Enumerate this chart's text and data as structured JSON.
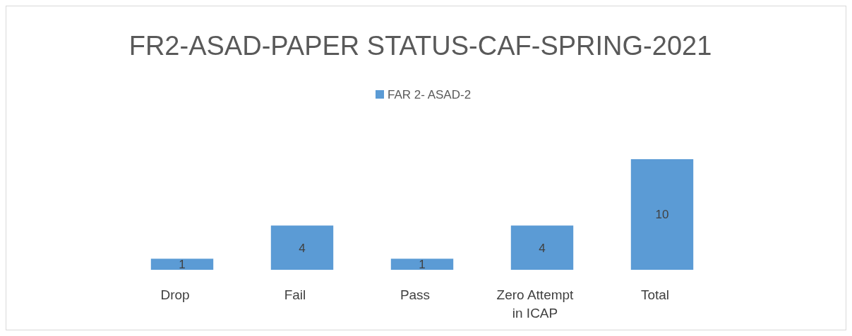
{
  "chart_data": {
    "type": "bar",
    "title": "FR2-ASAD-PAPER STATUS-CAF-SPRING-2021",
    "categories": [
      "Drop",
      "Fail",
      "Pass",
      "Zero Attempt in ICAP",
      "Total"
    ],
    "series": [
      {
        "name": "FAR 2- ASAD-2",
        "color": "#5b9bd5",
        "values": [
          1,
          4,
          1,
          4,
          10
        ]
      }
    ],
    "data_labels": true,
    "legend": "top"
  }
}
